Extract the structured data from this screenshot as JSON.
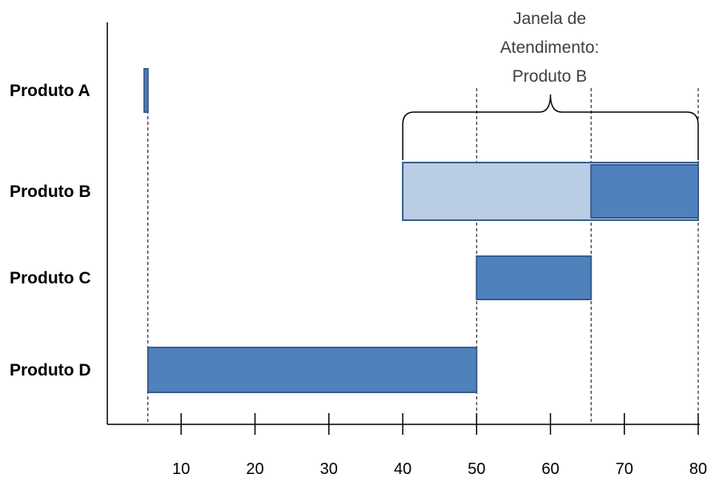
{
  "chart_data": {
    "type": "gantt",
    "title": "",
    "xlabel": "",
    "ylabel": "",
    "categories": [
      "Produto A",
      "Produto B",
      "Produto C",
      "Produto D"
    ],
    "x_ticks": [
      10,
      20,
      30,
      40,
      50,
      60,
      70,
      80
    ],
    "xlim": [
      0,
      80
    ],
    "grid": false,
    "bars": [
      {
        "category": "Produto A",
        "start": 5,
        "end": 5.5,
        "color": "#4f81bd"
      },
      {
        "category": "Produto B",
        "start": 40,
        "end": 80,
        "color": "#b9cde5",
        "role": "window"
      },
      {
        "category": "Produto B",
        "start": 65.5,
        "end": 80,
        "color": "#4f81bd"
      },
      {
        "category": "Produto C",
        "start": 50,
        "end": 65.5,
        "color": "#4f81bd"
      },
      {
        "category": "Produto D",
        "start": 5.5,
        "end": 50,
        "color": "#4f81bd"
      }
    ],
    "dashed_guides": [
      5.5,
      50,
      65.5,
      80
    ],
    "annotation": {
      "lines": [
        "Janela de",
        "Atendimento:",
        "Produto B"
      ],
      "range": [
        40,
        80
      ],
      "category": "Produto B"
    },
    "colors": {
      "bar": "#4f81bd",
      "bar_border": "#385d8a",
      "window": "#b9cde5",
      "axis": "#000000",
      "annotation_text": "#404040"
    }
  }
}
